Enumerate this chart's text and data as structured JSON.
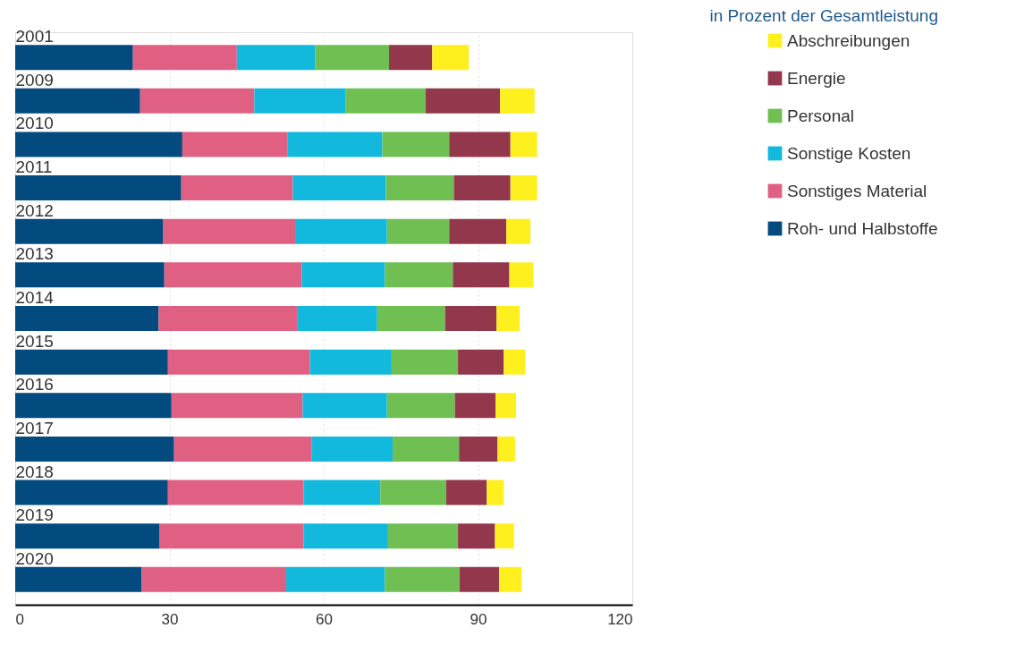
{
  "chart_data": {
    "type": "bar",
    "orientation": "horizontal",
    "stacked": true,
    "title": "in Prozent der Gesamtleistung",
    "categories": [
      "2001",
      "2009",
      "2010",
      "2011",
      "2012",
      "2013",
      "2014",
      "2015",
      "2016",
      "2017",
      "2018",
      "2019",
      "2020"
    ],
    "series": [
      {
        "name": "Roh- und Halbstoffe",
        "color": "#034a7e",
        "values": [
          22.9,
          24.3,
          32.5,
          32.3,
          28.8,
          29.0,
          27.9,
          29.7,
          30.4,
          30.9,
          29.7,
          28.1,
          24.6
        ]
      },
      {
        "name": "Sonstiges Material",
        "color": "#e06083",
        "values": [
          20.2,
          22.2,
          20.4,
          21.7,
          25.8,
          26.7,
          26.9,
          27.6,
          25.5,
          26.7,
          26.4,
          28.0,
          28.1
        ]
      },
      {
        "name": "Sonstige Kosten",
        "color": "#12b9dd",
        "values": [
          15.2,
          17.7,
          18.5,
          18.1,
          17.7,
          16.2,
          15.6,
          15.9,
          16.4,
          15.8,
          14.9,
          16.4,
          19.2
        ]
      },
      {
        "name": "Personal",
        "color": "#70bf53",
        "values": [
          14.4,
          15.6,
          13.0,
          13.2,
          12.1,
          13.2,
          13.2,
          12.9,
          13.2,
          12.9,
          12.8,
          13.6,
          14.5
        ]
      },
      {
        "name": "Energie",
        "color": "#93374d",
        "values": [
          8.4,
          14.5,
          11.9,
          11.0,
          11.1,
          11.0,
          10.0,
          8.9,
          7.9,
          7.5,
          7.9,
          7.2,
          7.7
        ]
      },
      {
        "name": "Abschreibungen",
        "color": "#fef01e",
        "values": [
          7.1,
          6.7,
          5.2,
          5.2,
          4.7,
          4.7,
          4.5,
          4.2,
          4.0,
          3.4,
          3.3,
          3.7,
          4.4
        ]
      }
    ],
    "xlim": [
      0,
      120
    ],
    "xticks": [
      0,
      30,
      60,
      90,
      120
    ],
    "grid": "x",
    "legend": "right"
  }
}
